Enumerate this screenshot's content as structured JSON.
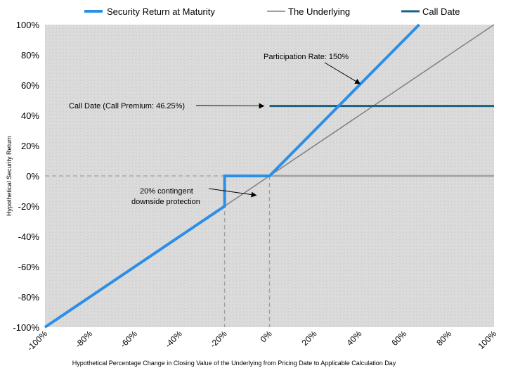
{
  "chart_data": {
    "type": "line",
    "x_range": [
      -100,
      100
    ],
    "y_range": [
      -100,
      100
    ],
    "x_ticks": [
      "-100%",
      "-80%",
      "-60%",
      "-40%",
      "-20%",
      "0%",
      "20%",
      "40%",
      "60%",
      "80%",
      "100%"
    ],
    "y_ticks": [
      "100%",
      "80%",
      "60%",
      "40%",
      "20%",
      "0%",
      "-20%",
      "-40%",
      "-60%",
      "-80%",
      "-100%"
    ],
    "xlabel": "Hypothetical Percentage Change in Closing Value of the Underlying from Pricing Date to Applicable Calculation Day",
    "ylabel": "Hypothetical Security Return",
    "grid": false,
    "legend_position": "top",
    "series": [
      {
        "name": "Security Return at Maturity",
        "color": "#2b8fe6",
        "points": [
          [
            -100,
            -100
          ],
          [
            -20,
            -20
          ],
          [
            -20,
            0
          ],
          [
            0,
            0
          ],
          [
            66.67,
            100
          ]
        ]
      },
      {
        "name": "The Underlying",
        "color": "#808080",
        "points": [
          [
            -100,
            -100
          ],
          [
            100,
            100
          ]
        ]
      },
      {
        "name": "Call Date",
        "color": "#1a6080",
        "points": [
          [
            0,
            46.25
          ],
          [
            100,
            46.25
          ]
        ]
      }
    ],
    "reference_lines": [
      {
        "kind": "dashed",
        "color": "#a0a0a0",
        "points": [
          [
            -100,
            0
          ],
          [
            -20,
            0
          ]
        ]
      },
      {
        "kind": "dashed",
        "color": "#a0a0a0",
        "points": [
          [
            -20,
            0
          ],
          [
            -20,
            -100
          ]
        ]
      },
      {
        "kind": "dashed",
        "color": "#a0a0a0",
        "points": [
          [
            0,
            0
          ],
          [
            0,
            -100
          ]
        ]
      },
      {
        "kind": "dashed",
        "color": "#a0a0a0",
        "points": [
          [
            0,
            0
          ],
          [
            100,
            0
          ]
        ]
      }
    ],
    "annotations": [
      {
        "text": "Participation Rate: 150%",
        "arrow_to": [
          40,
          60
        ]
      },
      {
        "text": "Call Date (Call Premium: 46.25%)",
        "arrow_to": [
          0,
          46.25
        ]
      },
      {
        "text_lines": [
          "20% contingent",
          "downside protection"
        ],
        "arrow_to": [
          -5,
          -10
        ]
      }
    ],
    "plot_background": "#d9d9d9"
  }
}
